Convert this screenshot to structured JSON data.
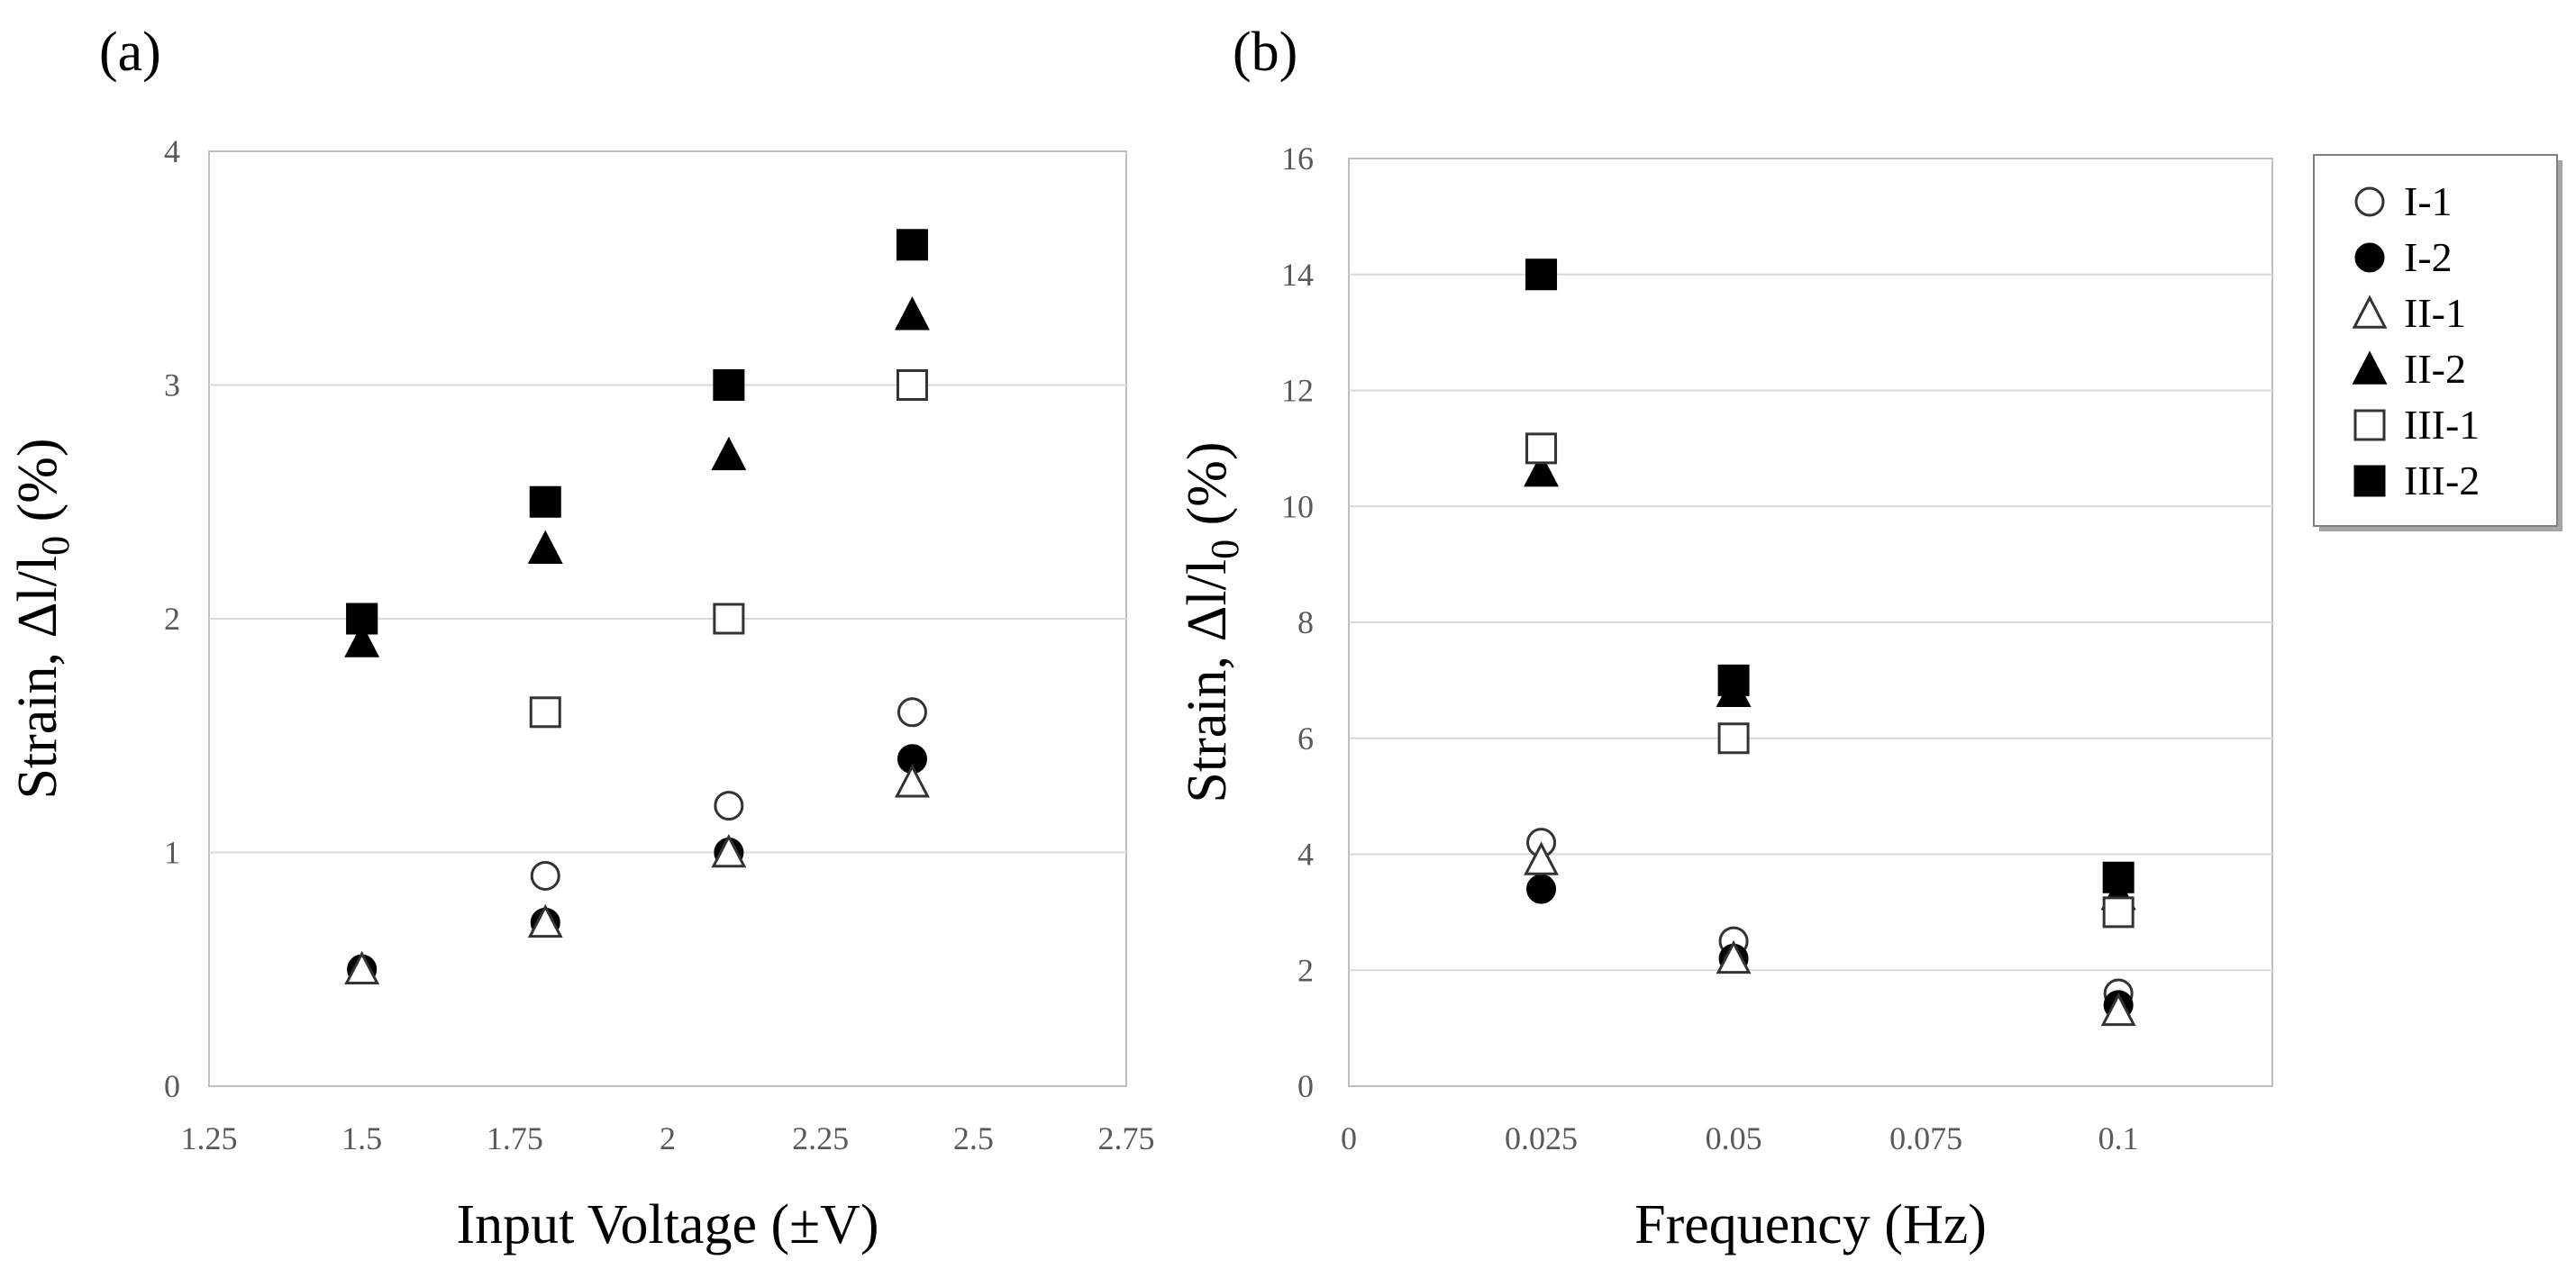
{
  "chart_data": [
    {
      "type": "scatter",
      "panel_label": "(a)",
      "xlabel": "Input Voltage (±V)",
      "ylabel": "Strain, Δl/l",
      "ylabel_sub": "0",
      "ylabel_tail": " (%)",
      "xlim": [
        1.25,
        2.75
      ],
      "ylim": [
        0,
        4
      ],
      "xticks": [
        1.25,
        1.5,
        1.75,
        2,
        2.25,
        2.5,
        2.75
      ],
      "xtick_labels": [
        "1.25",
        "1.5",
        "1.75",
        "2",
        "2.25",
        "2.5",
        "2.75"
      ],
      "yticks": [
        0,
        1,
        2,
        3,
        4
      ],
      "ytick_labels": [
        "0",
        "1",
        "2",
        "3",
        "4"
      ],
      "grid": "horizontal",
      "x": [
        1.5,
        1.8,
        2.1,
        2.4
      ],
      "series": [
        {
          "name": "I-1",
          "marker": "circle-open",
          "values": [
            0.5,
            0.9,
            1.2,
            1.6
          ]
        },
        {
          "name": "I-2",
          "marker": "circle-filled",
          "values": [
            0.5,
            0.7,
            1.0,
            1.4
          ]
        },
        {
          "name": "II-1",
          "marker": "triangle-open",
          "values": [
            0.5,
            0.7,
            1.0,
            1.3
          ]
        },
        {
          "name": "II-2",
          "marker": "triangle-filled",
          "values": [
            1.9,
            2.3,
            2.7,
            3.3
          ]
        },
        {
          "name": "III-1",
          "marker": "square-open",
          "values": [
            2.0,
            1.6,
            2.0,
            3.0
          ]
        },
        {
          "name": "III-2",
          "marker": "square-filled",
          "values": [
            2.0,
            2.5,
            3.0,
            3.6
          ]
        }
      ]
    },
    {
      "type": "scatter",
      "panel_label": "(b)",
      "xlabel": "Frequency  (Hz)",
      "ylabel": "Strain, Δl/l",
      "ylabel_sub": "0",
      "ylabel_tail": " (%)",
      "xlim": [
        0,
        0.12
      ],
      "ylim": [
        0,
        16
      ],
      "xticks": [
        0,
        0.025,
        0.05,
        0.075,
        0.1
      ],
      "xtick_labels": [
        "0",
        "0.025",
        "0.05",
        "0.075",
        "0.1"
      ],
      "yticks": [
        0,
        2,
        4,
        6,
        8,
        10,
        12,
        14,
        16
      ],
      "ytick_labels": [
        "0",
        "2",
        "4",
        "6",
        "8",
        "10",
        "12",
        "14",
        "16"
      ],
      "grid": "horizontal",
      "x": [
        0.025,
        0.05,
        0.1
      ],
      "series": [
        {
          "name": "I-1",
          "marker": "circle-open",
          "values": [
            4.2,
            2.5,
            1.6
          ]
        },
        {
          "name": "I-2",
          "marker": "circle-filled",
          "values": [
            3.4,
            2.2,
            1.4
          ]
        },
        {
          "name": "II-1",
          "marker": "triangle-open",
          "values": [
            3.9,
            2.2,
            1.3
          ]
        },
        {
          "name": "II-2",
          "marker": "triangle-filled",
          "values": [
            10.6,
            6.8,
            3.3
          ]
        },
        {
          "name": "III-1",
          "marker": "square-open",
          "values": [
            11.0,
            6.0,
            3.0
          ]
        },
        {
          "name": "III-2",
          "marker": "square-filled",
          "values": [
            14.0,
            7.0,
            3.6
          ]
        }
      ],
      "legend": {
        "placement": "right",
        "entries": [
          "I-1",
          "I-2",
          "II-1",
          "II-2",
          "III-1",
          "III-2"
        ]
      }
    }
  ]
}
